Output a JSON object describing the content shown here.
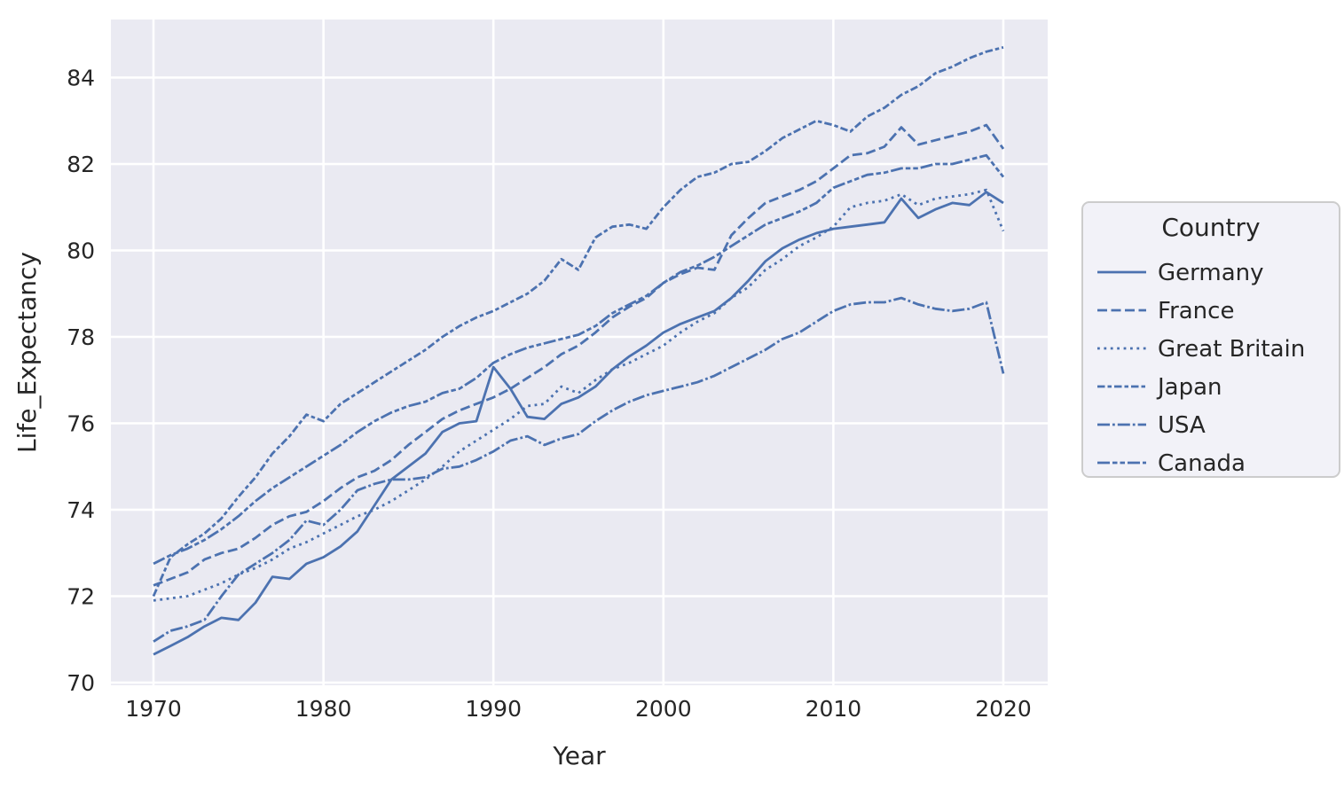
{
  "chart_data": {
    "type": "line",
    "title": "",
    "xlabel": "Year",
    "ylabel": "Life_Expectancy",
    "legend_title": "Country",
    "legend_position": "right-outside",
    "grid": true,
    "x_ticks": [
      1970,
      1980,
      1990,
      2000,
      2010,
      2020
    ],
    "y_ticks": [
      70,
      72,
      74,
      76,
      78,
      80,
      82,
      84
    ],
    "x_range": [
      1967.5,
      2022.6
    ],
    "y_range": [
      69.95,
      85.35
    ],
    "line_color": "#4c72b0",
    "x": [
      1970,
      1971,
      1972,
      1973,
      1974,
      1975,
      1976,
      1977,
      1978,
      1979,
      1980,
      1981,
      1982,
      1983,
      1984,
      1985,
      1986,
      1987,
      1988,
      1989,
      1990,
      1991,
      1992,
      1993,
      1994,
      1995,
      1996,
      1997,
      1998,
      1999,
      2000,
      2001,
      2002,
      2003,
      2004,
      2005,
      2006,
      2007,
      2008,
      2009,
      2010,
      2011,
      2012,
      2013,
      2014,
      2015,
      2016,
      2017,
      2018,
      2019,
      2020
    ],
    "series": [
      {
        "name": "Germany",
        "dash": "solid",
        "values": [
          70.65,
          70.85,
          71.05,
          71.3,
          71.5,
          71.45,
          71.85,
          72.45,
          72.4,
          72.75,
          72.9,
          73.15,
          73.5,
          74.1,
          74.7,
          75.0,
          75.3,
          75.8,
          76.0,
          76.05,
          77.3,
          76.8,
          76.15,
          76.1,
          76.45,
          76.6,
          76.85,
          77.25,
          77.55,
          77.8,
          78.1,
          78.3,
          78.45,
          78.6,
          78.9,
          79.3,
          79.75,
          80.05,
          80.25,
          80.4,
          80.5,
          80.55,
          80.6,
          80.65,
          81.2,
          80.75,
          80.95,
          81.1,
          81.05,
          81.35,
          81.1
        ]
      },
      {
        "name": "France",
        "dash": "dashed",
        "values": [
          72.25,
          72.4,
          72.55,
          72.85,
          73.0,
          73.1,
          73.35,
          73.65,
          73.85,
          73.95,
          74.2,
          74.5,
          74.75,
          74.9,
          75.15,
          75.5,
          75.8,
          76.1,
          76.3,
          76.45,
          76.6,
          76.8,
          77.05,
          77.3,
          77.6,
          77.8,
          78.1,
          78.45,
          78.7,
          78.9,
          79.25,
          79.45,
          79.6,
          79.55,
          80.35,
          80.75,
          81.1,
          81.25,
          81.4,
          81.6,
          81.9,
          82.2,
          82.25,
          82.4,
          82.85,
          82.45,
          82.55,
          82.65,
          82.75,
          82.9,
          82.35
        ]
      },
      {
        "name": "Great Britain",
        "dash": "dotted",
        "values": [
          71.9,
          71.95,
          72.0,
          72.15,
          72.3,
          72.5,
          72.65,
          72.85,
          73.1,
          73.25,
          73.45,
          73.65,
          73.85,
          74.0,
          74.2,
          74.45,
          74.7,
          75.0,
          75.35,
          75.6,
          75.85,
          76.1,
          76.4,
          76.45,
          76.85,
          76.7,
          77.0,
          77.25,
          77.4,
          77.6,
          77.8,
          78.1,
          78.35,
          78.55,
          78.9,
          79.15,
          79.55,
          79.8,
          80.1,
          80.3,
          80.55,
          81.0,
          81.1,
          81.15,
          81.3,
          81.05,
          81.2,
          81.25,
          81.3,
          81.4,
          80.45
        ]
      },
      {
        "name": "Japan",
        "dash": "dashdot",
        "values": [
          72.0,
          72.9,
          73.2,
          73.45,
          73.8,
          74.3,
          74.75,
          75.3,
          75.7,
          76.2,
          76.05,
          76.45,
          76.7,
          76.95,
          77.2,
          77.45,
          77.7,
          78.0,
          78.25,
          78.45,
          78.6,
          78.8,
          79.0,
          79.3,
          79.8,
          79.55,
          80.3,
          80.55,
          80.6,
          80.5,
          81.0,
          81.4,
          81.7,
          81.8,
          82.0,
          82.05,
          82.3,
          82.6,
          82.8,
          83.0,
          82.9,
          82.75,
          83.1,
          83.3,
          83.6,
          83.8,
          84.1,
          84.25,
          84.45,
          84.6,
          84.7
        ]
      },
      {
        "name": "USA",
        "dash": "longdashdot",
        "values": [
          70.95,
          71.2,
          71.3,
          71.45,
          72.0,
          72.5,
          72.75,
          73.0,
          73.3,
          73.75,
          73.65,
          74.0,
          74.45,
          74.6,
          74.7,
          74.7,
          74.75,
          74.95,
          75.0,
          75.15,
          75.35,
          75.6,
          75.7,
          75.5,
          75.65,
          75.75,
          76.05,
          76.3,
          76.5,
          76.65,
          76.75,
          76.85,
          76.95,
          77.1,
          77.3,
          77.5,
          77.7,
          77.95,
          78.1,
          78.35,
          78.6,
          78.75,
          78.8,
          78.8,
          78.9,
          78.75,
          78.65,
          78.6,
          78.65,
          78.8,
          77.15
        ]
      },
      {
        "name": "Canada",
        "dash": "dashdotdot",
        "values": [
          72.75,
          72.95,
          73.1,
          73.3,
          73.55,
          73.85,
          74.2,
          74.5,
          74.75,
          75.0,
          75.25,
          75.5,
          75.8,
          76.05,
          76.25,
          76.4,
          76.5,
          76.7,
          76.8,
          77.05,
          77.4,
          77.6,
          77.75,
          77.85,
          77.95,
          78.05,
          78.25,
          78.55,
          78.75,
          78.95,
          79.25,
          79.5,
          79.65,
          79.85,
          80.1,
          80.35,
          80.6,
          80.75,
          80.9,
          81.1,
          81.45,
          81.6,
          81.75,
          81.8,
          81.9,
          81.9,
          82.0,
          82.0,
          82.1,
          82.2,
          81.7
        ]
      }
    ]
  },
  "colors": {
    "line": "#4c72b0",
    "axes_background": "#eaeaf2",
    "grid": "#ffffff",
    "text": "#262626",
    "figure_background": "#ffffff",
    "legend_background": "#f2f2f8",
    "legend_border": "#cccccc"
  }
}
